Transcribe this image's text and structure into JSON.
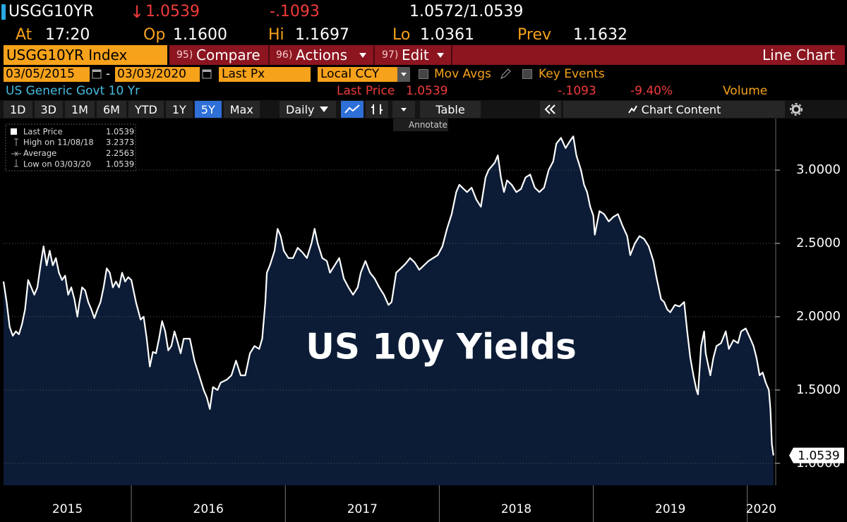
{
  "header": {
    "ticker": "USGG10YR",
    "direction": "↓",
    "last": "1.0539",
    "change": "-.1093",
    "bid_ask": "1.0572/1.0539",
    "quote": [
      {
        "label": "At",
        "value": "17:20"
      },
      {
        "label": "Op",
        "value": "1.1600"
      },
      {
        "label": "Hi",
        "value": "1.1697"
      },
      {
        "label": "Lo",
        "value": "1.0361"
      },
      {
        "label": "Prev",
        "value": "1.1632"
      }
    ]
  },
  "toolbar": {
    "security": "USGG10YR Index",
    "menus": [
      {
        "key": "95)",
        "label": "Compare"
      },
      {
        "key": "96)",
        "label": "Actions"
      },
      {
        "key": "97)",
        "label": "Edit"
      }
    ],
    "chart_kind": "Line Chart"
  },
  "settings": {
    "start_date": "03/05/2015",
    "date_sep": "-",
    "end_date": "03/03/2020",
    "field": "Last Px",
    "currency": "Local CCY",
    "options": [
      "Mov Avgs",
      "Key Events"
    ]
  },
  "info": {
    "name": "US Generic Govt 10 Yr",
    "last_label": "Last Price",
    "last": "1.0539",
    "change": "-.1093",
    "pct_change": "-9.40%",
    "volume_label": "Volume"
  },
  "controls": {
    "ranges": [
      "1D",
      "3D",
      "1M",
      "6M",
      "YTD",
      "1Y",
      "5Y",
      "Max"
    ],
    "selected_range": "5Y",
    "periodicity": "Daily",
    "table": "Table",
    "chart_content": "Chart Content",
    "annotate": "Annotate"
  },
  "chart_data": {
    "type": "line",
    "annotation": "US 10y Yields",
    "x": [
      2015.17,
      2015.19,
      2015.21,
      2015.23,
      2015.25,
      2015.27,
      2015.29,
      2015.31,
      2015.33,
      2015.35,
      2015.37,
      2015.39,
      2015.41,
      2015.43,
      2015.45,
      2015.47,
      2015.49,
      2015.51,
      2015.53,
      2015.55,
      2015.57,
      2015.59,
      2015.61,
      2015.63,
      2015.65,
      2015.66,
      2015.68,
      2015.7,
      2015.72,
      2015.74,
      2015.76,
      2015.78,
      2015.8,
      2015.82,
      2015.84,
      2015.86,
      2015.88,
      2015.9,
      2015.92,
      2015.94,
      2015.96,
      2015.98,
      2016.0,
      2016.03,
      2016.06,
      2016.08,
      2016.1,
      2016.12,
      2016.14,
      2016.16,
      2016.18,
      2016.2,
      2016.22,
      2016.24,
      2016.26,
      2016.28,
      2016.3,
      2016.32,
      2016.34,
      2016.38,
      2016.41,
      2016.44,
      2016.47,
      2016.49,
      2016.51,
      2016.53,
      2016.56,
      2016.58,
      2016.62,
      2016.65,
      2016.68,
      2016.71,
      2016.74,
      2016.77,
      2016.8,
      2016.83,
      2016.85,
      2016.87,
      2016.88,
      2016.9,
      2016.93,
      2016.95,
      2016.97,
      2016.99,
      2017.02,
      2017.05,
      2017.08,
      2017.11,
      2017.14,
      2017.17,
      2017.19,
      2017.21,
      2017.24,
      2017.27,
      2017.29,
      2017.32,
      2017.35,
      2017.38,
      2017.41,
      2017.44,
      2017.47,
      2017.49,
      2017.52,
      2017.55,
      2017.58,
      2017.61,
      2017.64,
      2017.67,
      2017.69,
      2017.72,
      2017.75,
      2017.78,
      2017.81,
      2017.84,
      2017.87,
      2017.9,
      2017.93,
      2017.96,
      2017.99,
      2018.02,
      2018.05,
      2018.08,
      2018.11,
      2018.13,
      2018.15,
      2018.18,
      2018.21,
      2018.24,
      2018.27,
      2018.3,
      2018.32,
      2018.36,
      2018.38,
      2018.4,
      2018.42,
      2018.44,
      2018.47,
      2018.5,
      2018.53,
      2018.56,
      2018.59,
      2018.62,
      2018.65,
      2018.68,
      2018.71,
      2018.74,
      2018.76,
      2018.79,
      2018.82,
      2018.85,
      2018.87,
      2018.89,
      2018.92,
      2018.94,
      2018.96,
      2018.98,
      2019.0,
      2019.01,
      2019.04,
      2019.07,
      2019.1,
      2019.13,
      2019.16,
      2019.19,
      2019.22,
      2019.24,
      2019.27,
      2019.3,
      2019.33,
      2019.36,
      2019.39,
      2019.41,
      2019.44,
      2019.46,
      2019.48,
      2019.5,
      2019.53,
      2019.56,
      2019.59,
      2019.61,
      2019.63,
      2019.65,
      2019.67,
      2019.68,
      2019.7,
      2019.72,
      2019.73,
      2019.76,
      2019.78,
      2019.8,
      2019.83,
      2019.86,
      2019.88,
      2019.91,
      2019.94,
      2019.96,
      2019.99,
      2020.02,
      2020.04,
      2020.06,
      2020.08,
      2020.1,
      2020.12,
      2020.14,
      2020.15,
      2020.16,
      2020.17
    ],
    "series": [
      {
        "name": "Last Price",
        "color": "#ffffff",
        "values": [
          2.24,
          2.1,
          1.93,
          1.87,
          1.9,
          1.88,
          1.95,
          2.05,
          2.25,
          2.2,
          2.15,
          2.2,
          2.35,
          2.48,
          2.35,
          2.45,
          2.35,
          2.4,
          2.3,
          2.25,
          2.28,
          2.15,
          2.2,
          2.12,
          2.0,
          2.08,
          2.2,
          2.18,
          2.1,
          2.05,
          1.99,
          2.05,
          2.1,
          2.2,
          2.33,
          2.3,
          2.2,
          2.24,
          2.2,
          2.3,
          2.24,
          2.27,
          2.25,
          2.1,
          1.98,
          2.0,
          1.85,
          1.66,
          1.76,
          1.75,
          1.85,
          1.97,
          1.9,
          1.77,
          1.8,
          1.9,
          1.83,
          1.75,
          1.85,
          1.85,
          1.7,
          1.6,
          1.5,
          1.45,
          1.37,
          1.52,
          1.5,
          1.55,
          1.57,
          1.6,
          1.7,
          1.6,
          1.6,
          1.75,
          1.8,
          1.78,
          1.85,
          2.1,
          2.3,
          2.35,
          2.45,
          2.6,
          2.55,
          2.45,
          2.4,
          2.4,
          2.47,
          2.44,
          2.4,
          2.5,
          2.6,
          2.5,
          2.4,
          2.38,
          2.3,
          2.35,
          2.4,
          2.26,
          2.2,
          2.15,
          2.2,
          2.3,
          2.38,
          2.3,
          2.26,
          2.2,
          2.15,
          2.08,
          2.1,
          2.3,
          2.33,
          2.36,
          2.4,
          2.37,
          2.32,
          2.35,
          2.38,
          2.4,
          2.42,
          2.48,
          2.6,
          2.7,
          2.85,
          2.9,
          2.88,
          2.85,
          2.88,
          2.8,
          2.75,
          2.95,
          3.0,
          3.05,
          3.1,
          2.95,
          2.85,
          2.93,
          2.9,
          2.85,
          2.87,
          2.95,
          2.97,
          2.88,
          2.85,
          2.88,
          3.0,
          3.06,
          3.18,
          3.22,
          3.15,
          3.2,
          3.23,
          3.1,
          3.0,
          2.9,
          2.85,
          2.75,
          2.69,
          2.56,
          2.72,
          2.7,
          2.65,
          2.68,
          2.7,
          2.62,
          2.55,
          2.42,
          2.5,
          2.55,
          2.53,
          2.48,
          2.38,
          2.27,
          2.12,
          2.1,
          2.05,
          2.03,
          2.08,
          2.07,
          2.1,
          1.9,
          1.72,
          1.6,
          1.5,
          1.47,
          1.8,
          1.9,
          1.75,
          1.6,
          1.72,
          1.8,
          1.82,
          1.9,
          1.78,
          1.84,
          1.82,
          1.9,
          1.92,
          1.85,
          1.8,
          1.72,
          1.6,
          1.62,
          1.55,
          1.5,
          1.37,
          1.13,
          1.0539
        ]
      }
    ],
    "legend_stats": [
      {
        "label": "High on 11/08/18",
        "value": 3.2373
      },
      {
        "label": "Average",
        "value": 2.2563
      },
      {
        "label": "Low on 03/03/20",
        "value": 1.0539
      }
    ],
    "area_color": "#0c1c36",
    "xlim": [
      2015.17,
      2020.18
    ],
    "xticks": [
      2015,
      2016,
      2017,
      2018,
      2019,
      2020
    ],
    "ylim": [
      0.85,
      3.27
    ],
    "yticks": [
      {
        "value": 1,
        "label": "1.0000"
      },
      {
        "value": 1.5,
        "label": "1.5000"
      },
      {
        "value": 2,
        "label": "2.0000"
      },
      {
        "value": 2.5,
        "label": "2.5000"
      },
      {
        "value": 3,
        "label": "3.0000"
      }
    ],
    "grid": true
  }
}
